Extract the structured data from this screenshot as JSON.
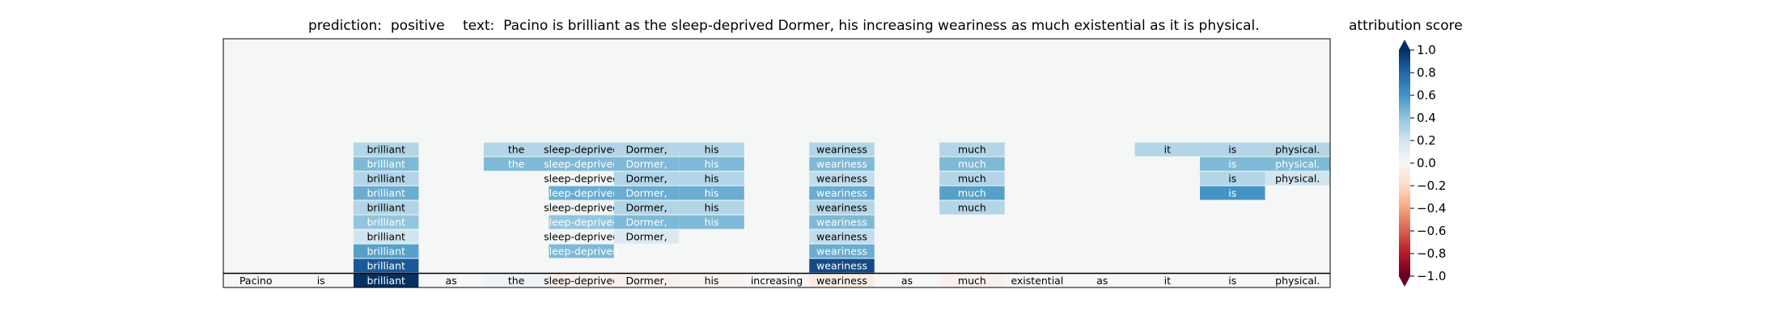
{
  "chart_data": {
    "type": "heatmap",
    "title": {
      "prediction_label": "prediction:",
      "prediction_value": "positive",
      "text_label": "text:",
      "text_value": "Pacino is brilliant as the sleep-deprived Dormer, his increasing weariness as much existential as it is physical."
    },
    "tokens": [
      "Pacino",
      "is",
      "brilliant",
      "as",
      "the",
      "sleep-deprived",
      "Dormer,",
      "his",
      "increasing",
      "weariness",
      "as",
      "much",
      "existential",
      "as",
      "it",
      "is",
      "physical."
    ],
    "base_scores": [
      0.0,
      0.0,
      1.0,
      0.0,
      0.05,
      -0.05,
      -0.05,
      -0.03,
      0.0,
      -0.08,
      0.0,
      -0.05,
      0.0,
      0.0,
      0.0,
      0.0,
      0.0
    ],
    "layers": [
      [
        null,
        null,
        0.85,
        null,
        null,
        null,
        null,
        null,
        null,
        0.9,
        null,
        null,
        null,
        null,
        null,
        null,
        null
      ],
      [
        null,
        null,
        0.55,
        null,
        null,
        0.45,
        null,
        null,
        null,
        0.5,
        null,
        null,
        null,
        null,
        null,
        null,
        null
      ],
      [
        null,
        null,
        0.2,
        null,
        null,
        0.02,
        0.15,
        null,
        null,
        0.25,
        null,
        null,
        null,
        null,
        null,
        null,
        null
      ],
      [
        null,
        null,
        0.4,
        null,
        null,
        0.4,
        0.45,
        0.45,
        null,
        0.45,
        null,
        null,
        null,
        null,
        null,
        null,
        null
      ],
      [
        null,
        null,
        0.3,
        null,
        null,
        0.05,
        0.3,
        0.3,
        null,
        0.3,
        null,
        0.3,
        null,
        null,
        null,
        null,
        null
      ],
      [
        null,
        null,
        0.5,
        null,
        null,
        0.5,
        0.5,
        0.5,
        null,
        0.5,
        null,
        0.55,
        null,
        null,
        null,
        0.6,
        null
      ],
      [
        null,
        null,
        0.3,
        null,
        null,
        0.02,
        0.3,
        0.3,
        null,
        0.25,
        null,
        0.3,
        null,
        null,
        null,
        0.3,
        0.2
      ],
      [
        null,
        null,
        0.45,
        null,
        0.45,
        0.45,
        0.45,
        0.45,
        null,
        0.45,
        null,
        0.45,
        null,
        null,
        null,
        0.45,
        0.45
      ],
      [
        null,
        null,
        0.3,
        null,
        0.3,
        0.3,
        0.3,
        0.3,
        null,
        0.3,
        null,
        0.3,
        null,
        null,
        0.3,
        0.3,
        0.3
      ]
    ],
    "colorbar": {
      "title": "attribution score",
      "ticks": [
        "1.0",
        "0.8",
        "0.6",
        "0.4",
        "0.2",
        "0.0",
        "−0.2",
        "−0.4",
        "−0.6",
        "−0.8",
        "−1.0"
      ],
      "tick_values": [
        1.0,
        0.8,
        0.6,
        0.4,
        0.2,
        0.0,
        -0.2,
        -0.4,
        -0.6,
        -0.8,
        -1.0
      ],
      "range": [
        -1.0,
        1.0
      ],
      "colormap": "RdBu",
      "extend": "both"
    },
    "grid": false
  }
}
